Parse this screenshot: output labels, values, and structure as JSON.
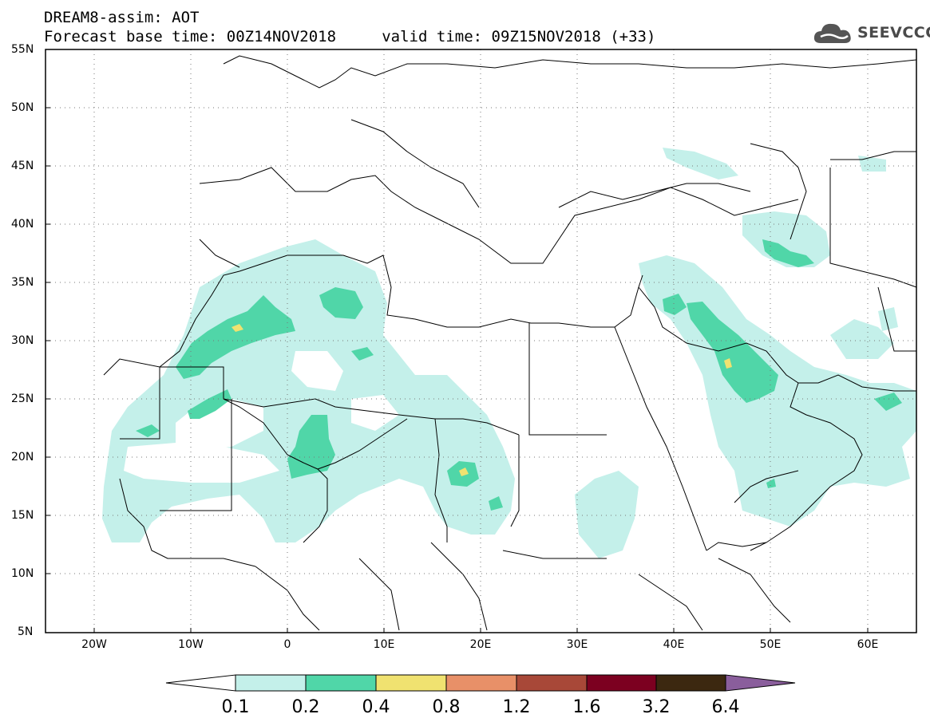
{
  "title": {
    "line1": "DREAM8-assim: AOT",
    "line2": "Forecast base time: 00Z14NOV2018     valid time: 09Z15NOV2018 (+33)"
  },
  "logo": {
    "text": "SEEVCCC",
    "icon": "cloud-icon"
  },
  "map": {
    "lat_labels": [
      "55N",
      "50N",
      "45N",
      "40N",
      "35N",
      "30N",
      "25N",
      "20N",
      "15N",
      "10N",
      "5N"
    ],
    "lon_labels": [
      "20W",
      "10W",
      "0",
      "10E",
      "20E",
      "30E",
      "40E",
      "50E",
      "60E"
    ],
    "lon_range": [
      -25,
      65
    ],
    "lat_range": [
      5,
      55
    ],
    "grid": "dotted"
  },
  "colorbar": {
    "labels": [
      "0.1",
      "0.2",
      "0.4",
      "0.8",
      "1.2",
      "1.6",
      "3.2",
      "6.4"
    ],
    "colors": [
      "#ffffff",
      "#c4f0ea",
      "#50d6a8",
      "#f0e270",
      "#e89068",
      "#a84838",
      "#7c0020",
      "#3c2810",
      "#8a5e9c"
    ]
  },
  "colors": {
    "aot_low": "#c4f0ea",
    "aot_mid": "#50d6a8",
    "aot_high": "#f0e270",
    "border": "#000000"
  }
}
